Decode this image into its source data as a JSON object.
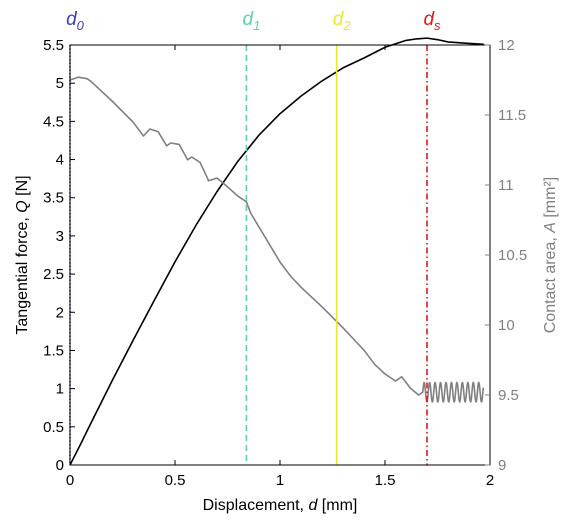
{
  "chart_data": {
    "type": "line",
    "x_axis": {
      "label_prefix": "Displacement, ",
      "label_var": "d",
      "label_suffix": " [mm]",
      "range": [
        0,
        2
      ],
      "ticks": [
        0,
        0.5,
        1,
        1.5,
        2
      ],
      "tick_labels": [
        "0",
        "0.5",
        "1",
        "1.5",
        "2"
      ]
    },
    "y_left": {
      "label_prefix": "Tangential force,  ",
      "label_var": "Q",
      "label_suffix": " [N]",
      "range": [
        0,
        5.5
      ],
      "ticks": [
        0,
        0.5,
        1,
        1.5,
        2,
        2.5,
        3,
        3.5,
        4,
        4.5,
        5,
        5.5
      ],
      "tick_labels": [
        "0",
        "0.5",
        "1",
        "1.5",
        "2",
        "2.5",
        "3",
        "3.5",
        "4",
        "4.5",
        "5",
        "5.5"
      ],
      "color": "#000000"
    },
    "y_right": {
      "label_prefix": "Contact area,  ",
      "label_var": "A",
      "label_suffix": " [mm²]",
      "range": [
        9,
        12
      ],
      "ticks": [
        9,
        9.5,
        10,
        10.5,
        11,
        11.5,
        12
      ],
      "tick_labels": [
        "9",
        "9.5",
        "10",
        "10.5",
        "11",
        "11.5",
        "12"
      ],
      "color": "#808080"
    },
    "series": [
      {
        "axis": "left",
        "color": "#000000",
        "points": [
          [
            0.0,
            0.0
          ],
          [
            0.05,
            0.27
          ],
          [
            0.1,
            0.55
          ],
          [
            0.2,
            1.1
          ],
          [
            0.3,
            1.63
          ],
          [
            0.4,
            2.15
          ],
          [
            0.5,
            2.66
          ],
          [
            0.6,
            3.14
          ],
          [
            0.7,
            3.58
          ],
          [
            0.8,
            3.98
          ],
          [
            0.9,
            4.32
          ],
          [
            1.0,
            4.6
          ],
          [
            1.1,
            4.83
          ],
          [
            1.2,
            5.03
          ],
          [
            1.3,
            5.2
          ],
          [
            1.4,
            5.33
          ],
          [
            1.5,
            5.47
          ],
          [
            1.6,
            5.56
          ],
          [
            1.65,
            5.58
          ],
          [
            1.7,
            5.59
          ],
          [
            1.75,
            5.57
          ],
          [
            1.8,
            5.54
          ],
          [
            1.9,
            5.52
          ],
          [
            1.97,
            5.51
          ]
        ]
      },
      {
        "axis": "right",
        "color": "#808080",
        "points": [
          [
            0.0,
            11.75
          ],
          [
            0.04,
            11.77
          ],
          [
            0.08,
            11.76
          ],
          [
            0.1,
            11.74
          ],
          [
            0.2,
            11.6
          ],
          [
            0.3,
            11.45
          ],
          [
            0.35,
            11.35
          ],
          [
            0.38,
            11.4
          ],
          [
            0.42,
            11.38
          ],
          [
            0.46,
            11.28
          ],
          [
            0.48,
            11.3
          ],
          [
            0.52,
            11.29
          ],
          [
            0.56,
            11.18
          ],
          [
            0.58,
            11.2
          ],
          [
            0.62,
            11.16
          ],
          [
            0.66,
            11.03
          ],
          [
            0.7,
            11.05
          ],
          [
            0.74,
            11.0
          ],
          [
            0.8,
            10.92
          ],
          [
            0.84,
            10.88
          ],
          [
            0.86,
            10.8
          ],
          [
            0.9,
            10.7
          ],
          [
            0.96,
            10.55
          ],
          [
            1.0,
            10.45
          ],
          [
            1.05,
            10.35
          ],
          [
            1.1,
            10.27
          ],
          [
            1.2,
            10.13
          ],
          [
            1.3,
            9.98
          ],
          [
            1.35,
            9.9
          ],
          [
            1.4,
            9.82
          ],
          [
            1.45,
            9.72
          ],
          [
            1.5,
            9.65
          ],
          [
            1.55,
            9.6
          ],
          [
            1.58,
            9.63
          ],
          [
            1.62,
            9.55
          ],
          [
            1.66,
            9.5
          ],
          [
            1.68,
            9.52
          ]
        ],
        "oscillation": {
          "x_start": 1.68,
          "x_end": 1.97,
          "center": 9.52,
          "amplitude": 0.07,
          "period": 0.026
        }
      }
    ],
    "markers": [
      {
        "name": "d0",
        "base": "d",
        "sub": "0",
        "x": 0,
        "color": "#3a3cc4",
        "style": "dotted"
      },
      {
        "name": "d1",
        "base": "d",
        "sub": "1",
        "x": 0.84,
        "color": "#5dd0b0",
        "style": "dashed"
      },
      {
        "name": "d2",
        "base": "d",
        "sub": "2",
        "x": 1.27,
        "color": "#f0e62a",
        "style": "solid"
      },
      {
        "name": "ds",
        "base": "d",
        "sub": "s",
        "x": 1.7,
        "color": "#e01818",
        "style": "dashdot"
      }
    ]
  }
}
